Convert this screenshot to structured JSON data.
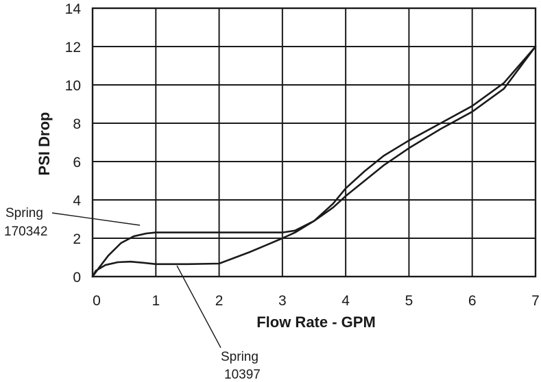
{
  "chart_data": {
    "type": "line",
    "title": "",
    "xlabel": "Flow Rate - GPM",
    "ylabel": "PSI Drop",
    "xlim": [
      0,
      7
    ],
    "ylim": [
      0,
      14
    ],
    "x_ticks": [
      0,
      1,
      2,
      3,
      4,
      5,
      6,
      7
    ],
    "y_ticks": [
      0,
      2,
      4,
      6,
      8,
      10,
      12,
      14
    ],
    "x_tick_labels": [
      "0",
      "1",
      "2",
      "3",
      "4",
      "5",
      "6",
      "7"
    ],
    "y_tick_labels": [
      "0",
      "2",
      "4",
      "6",
      "8",
      "10",
      "12",
      "14"
    ],
    "grid": true,
    "legend": "none",
    "series": [
      {
        "name": "Spring 170342",
        "label_lines": [
          "Spring",
          "170342"
        ],
        "points": [
          [
            0,
            0
          ],
          [
            0.1,
            0.45
          ],
          [
            0.25,
            1.1
          ],
          [
            0.45,
            1.75
          ],
          [
            0.65,
            2.1
          ],
          [
            0.85,
            2.25
          ],
          [
            1,
            2.3
          ],
          [
            1.5,
            2.3
          ],
          [
            2,
            2.3
          ],
          [
            2.5,
            2.3
          ],
          [
            3,
            2.3
          ],
          [
            3.2,
            2.4
          ],
          [
            3.5,
            2.9
          ],
          [
            3.8,
            3.8
          ],
          [
            4,
            4.6
          ],
          [
            4.3,
            5.5
          ],
          [
            4.6,
            6.3
          ],
          [
            5,
            7.1
          ],
          [
            5.5,
            8
          ],
          [
            6,
            8.9
          ],
          [
            6.5,
            10.1
          ],
          [
            7,
            12
          ]
        ]
      },
      {
        "name": "Spring 10397",
        "label_lines": [
          "Spring",
          "10397"
        ],
        "points": [
          [
            0,
            0
          ],
          [
            0.05,
            0.3
          ],
          [
            0.2,
            0.6
          ],
          [
            0.4,
            0.75
          ],
          [
            0.6,
            0.78
          ],
          [
            0.8,
            0.72
          ],
          [
            1,
            0.65
          ],
          [
            1.5,
            0.65
          ],
          [
            2,
            0.68
          ],
          [
            2.5,
            1.3
          ],
          [
            3,
            2
          ],
          [
            3.2,
            2.3
          ],
          [
            3.5,
            2.9
          ],
          [
            3.8,
            3.6
          ],
          [
            4,
            4.2
          ],
          [
            4.3,
            5
          ],
          [
            4.6,
            5.8
          ],
          [
            5,
            6.7
          ],
          [
            5.5,
            7.7
          ],
          [
            6,
            8.6
          ],
          [
            6.5,
            9.8
          ],
          [
            7,
            12
          ]
        ]
      }
    ]
  }
}
